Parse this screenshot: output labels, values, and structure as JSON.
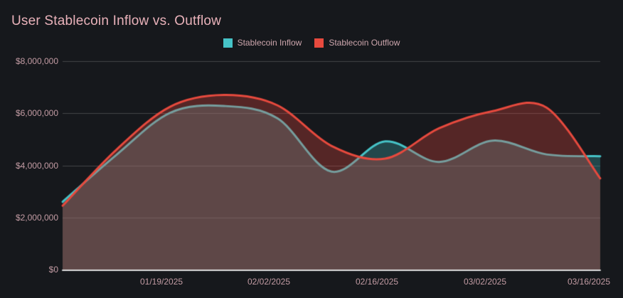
{
  "chart_data": {
    "type": "area",
    "title": "User Stablecoin Inflow vs. Outflow",
    "x_tick_labels": [
      "01/19/2025",
      "02/02/2025",
      "02/16/2025",
      "03/02/2025",
      "03/16/2025"
    ],
    "y_tick_labels": [
      "$0",
      "$2,000,000",
      "$4,000,000",
      "$6,000,000",
      "$8,000,000"
    ],
    "ylim": [
      0,
      8000000
    ],
    "grid": "horizontal",
    "legend_position": "top-center",
    "series": [
      {
        "name": "Stablecoin Inflow",
        "color": "#46c3c7",
        "fill": "rgba(70,195,199,0.28)",
        "values": [
          2600000,
          4400000,
          6020000,
          6280000,
          5800000,
          3760000,
          4920000,
          4130000,
          4950000,
          4420000,
          4350000
        ]
      },
      {
        "name": "Stablecoin Outflow",
        "color": "#e74a3e",
        "fill": "rgba(231,74,62,0.30)",
        "values": [
          2450000,
          4600000,
          6250000,
          6700000,
          6300000,
          4750000,
          4260000,
          5420000,
          6080000,
          6220000,
          3500000
        ]
      }
    ]
  },
  "theme": {
    "background": "#16181c",
    "title_color": "#e9b2ba",
    "tick_text": "#c29ba3",
    "legend_text": "#cda6ad",
    "grid": "rgba(255,255,255,0.2)",
    "axis_line": "rgba(255,255,255,0.85)"
  }
}
